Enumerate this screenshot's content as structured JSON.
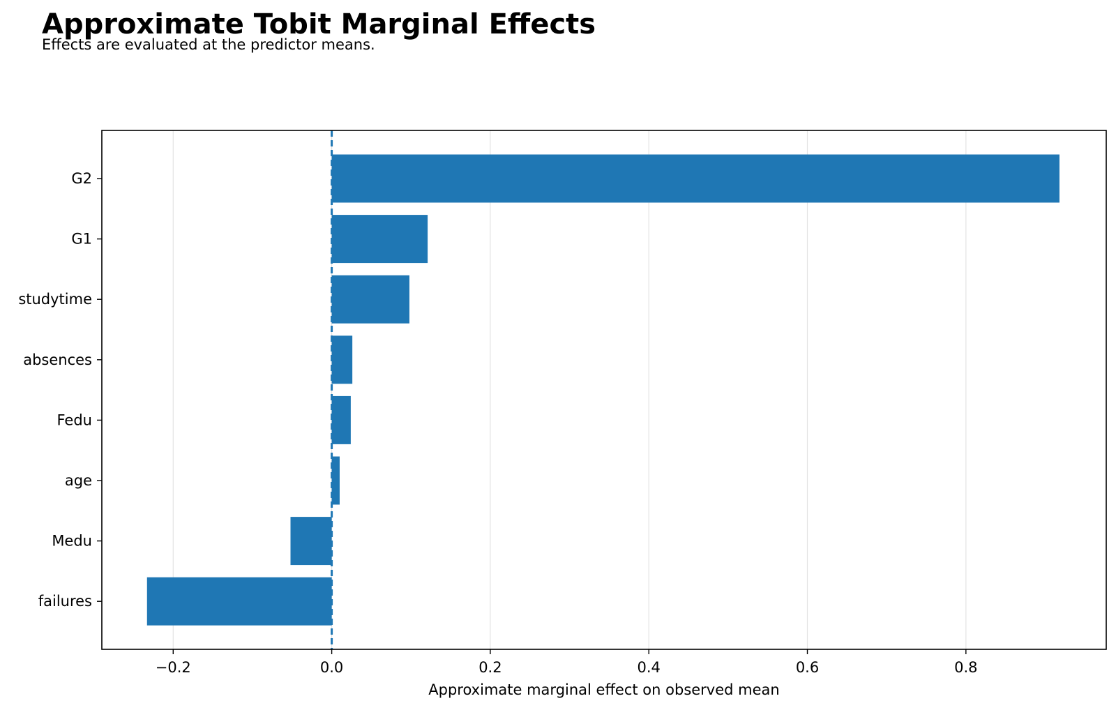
{
  "chart_data": {
    "type": "bar",
    "orientation": "horizontal",
    "title": "Approximate Tobit Marginal Effects",
    "subtitle": "Effects are evaluated at the predictor means.",
    "xlabel": "Approximate marginal effect on observed mean",
    "ylabel": "",
    "categories": [
      "G2",
      "G1",
      "studytime",
      "absences",
      "Fedu",
      "age",
      "Medu",
      "failures"
    ],
    "values": [
      0.918,
      0.121,
      0.098,
      0.026,
      0.024,
      0.01,
      -0.052,
      -0.233
    ],
    "xlim": [
      -0.29,
      0.977
    ],
    "xticks": [
      -0.2,
      0.0,
      0.2,
      0.4,
      0.6,
      0.8
    ],
    "xtick_labels": [
      "−0.2",
      "0.0",
      "0.2",
      "0.4",
      "0.6",
      "0.8"
    ],
    "reference_line": {
      "x": 0,
      "style": "dashed"
    },
    "grid": {
      "x": true,
      "y": false
    },
    "legend": "none",
    "colors": {
      "bar": "#1f77b4",
      "reference_line": "#1f77b4",
      "grid": "#e3e3e3",
      "axes": "#000000"
    }
  }
}
